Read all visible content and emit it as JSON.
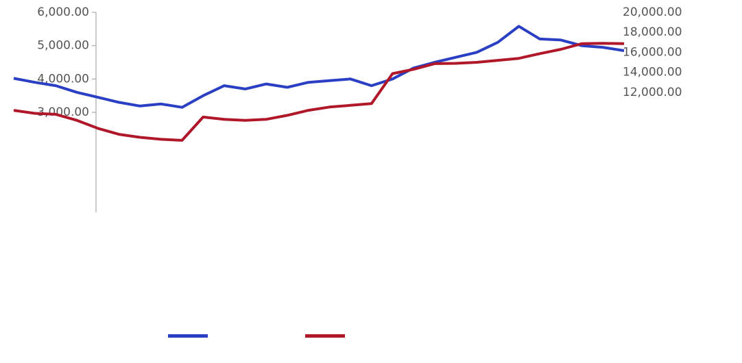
{
  "chart_data": {
    "type": "line",
    "series": [
      {
        "color": "#2a3fc4",
        "values": [
          4020,
          3900,
          3800,
          3600,
          3450,
          3300,
          3190,
          3250,
          3150,
          3500,
          3800,
          3700,
          3850,
          3750,
          3900,
          3950,
          4000,
          3800,
          4000,
          4330,
          4500,
          4650,
          4800,
          5100,
          5580,
          5200,
          5170,
          5000,
          4950,
          4850
        ]
      },
      {
        "color": "#b0182a",
        "axis": "y2",
        "values": [
          10200,
          9900,
          9800,
          9200,
          8400,
          7800,
          7500,
          7300,
          7200,
          9530,
          9300,
          9200,
          9300,
          9700,
          10200,
          10530,
          10700,
          10870,
          13870,
          14300,
          14870,
          14900,
          15000,
          15200,
          15400,
          15870,
          16300,
          16870,
          16900,
          16870
        ]
      }
    ],
    "ylim": [
      0,
      6000
    ],
    "yticks": [
      {
        "value": 3000,
        "label": "3,000.00"
      },
      {
        "value": 4000,
        "label": "4,000.00"
      },
      {
        "value": 5000,
        "label": "5,000.00"
      },
      {
        "value": 6000,
        "label": "6,000.00"
      }
    ],
    "y2lim": [
      0,
      20000
    ],
    "y2ticks": [
      {
        "value": 12000,
        "label": "12,000.00"
      },
      {
        "value": 14000,
        "label": "14,000.00"
      },
      {
        "value": 16000,
        "label": "16,000.00"
      },
      {
        "value": 18000,
        "label": "18,000.00"
      },
      {
        "value": 20000,
        "label": "20,000.00"
      }
    ]
  }
}
